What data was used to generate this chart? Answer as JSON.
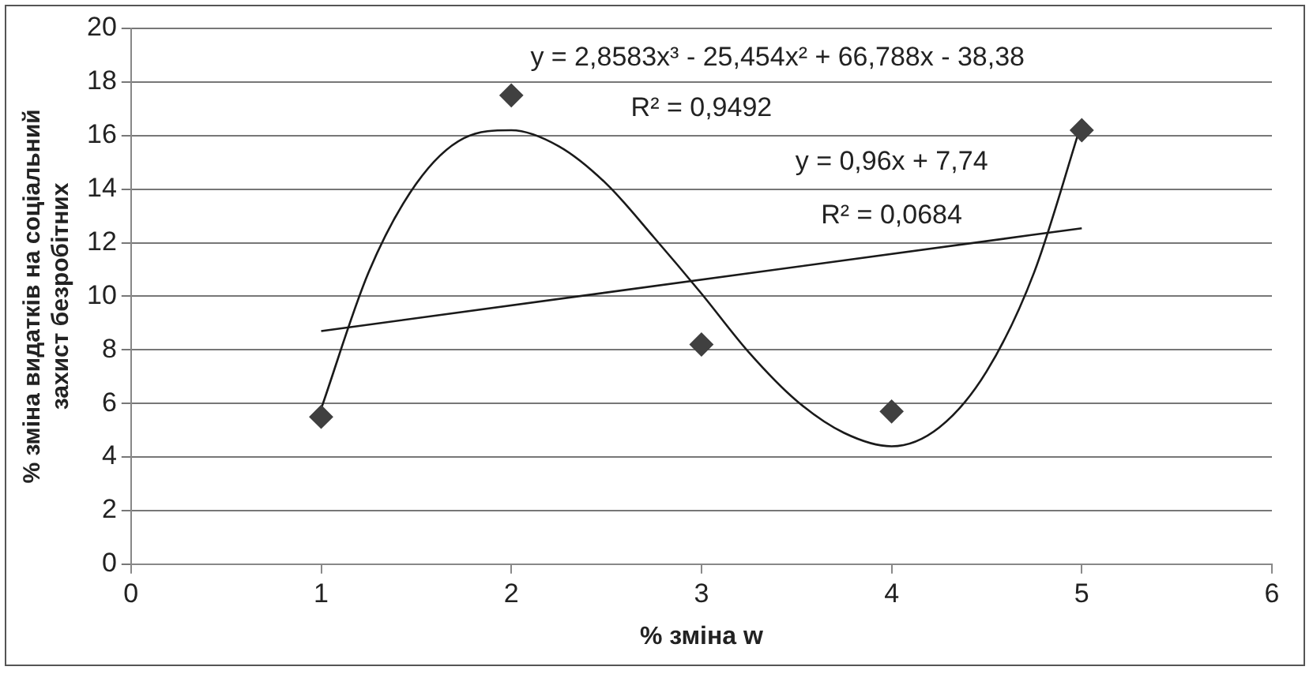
{
  "chart_data": {
    "type": "scatter",
    "xlabel": "% зміна w",
    "ylabel": "% зміна видатків на соціальний захист безробітних",
    "xlim": [
      0,
      6
    ],
    "xticks": [
      0,
      1,
      2,
      3,
      4,
      5,
      6
    ],
    "ylim": [
      0,
      20
    ],
    "yticks": [
      0,
      2,
      4,
      6,
      8,
      10,
      12,
      14,
      16,
      18,
      20
    ],
    "grid": "y",
    "legend": false,
    "marker": "diamond",
    "series": [
      {
        "type": "scatter",
        "color": "#404040",
        "x": [
          1,
          2,
          3,
          4,
          5
        ],
        "values": [
          5.5,
          17.5,
          8.2,
          5.7,
          16.2
        ]
      },
      {
        "type": "line",
        "color": "#1a1a1a",
        "marker": "none",
        "x": [
          1,
          1.25,
          1.5,
          1.75,
          2,
          2.25,
          2.5,
          2.75,
          3,
          3.25,
          3.5,
          3.75,
          4,
          4.25,
          4.5,
          4.75,
          5
        ],
        "values": [
          5.8,
          10.9,
          14.2,
          15.9,
          16.2,
          15.6,
          14.2,
          12.2,
          10.1,
          7.9,
          6.1,
          4.9,
          4.4,
          5.1,
          7.2,
          10.9,
          16.5
        ]
      },
      {
        "type": "line",
        "color": "#1a1a1a",
        "marker": "none",
        "x": [
          1,
          5
        ],
        "values": [
          8.7,
          12.54
        ]
      }
    ],
    "annotations": [
      "y = 2,8583x³ - 25,454x² + 66,788x - 38,38",
      "R² = 0,9492",
      "y = 0,96x + 7,74",
      "R² = 0,0684"
    ]
  }
}
